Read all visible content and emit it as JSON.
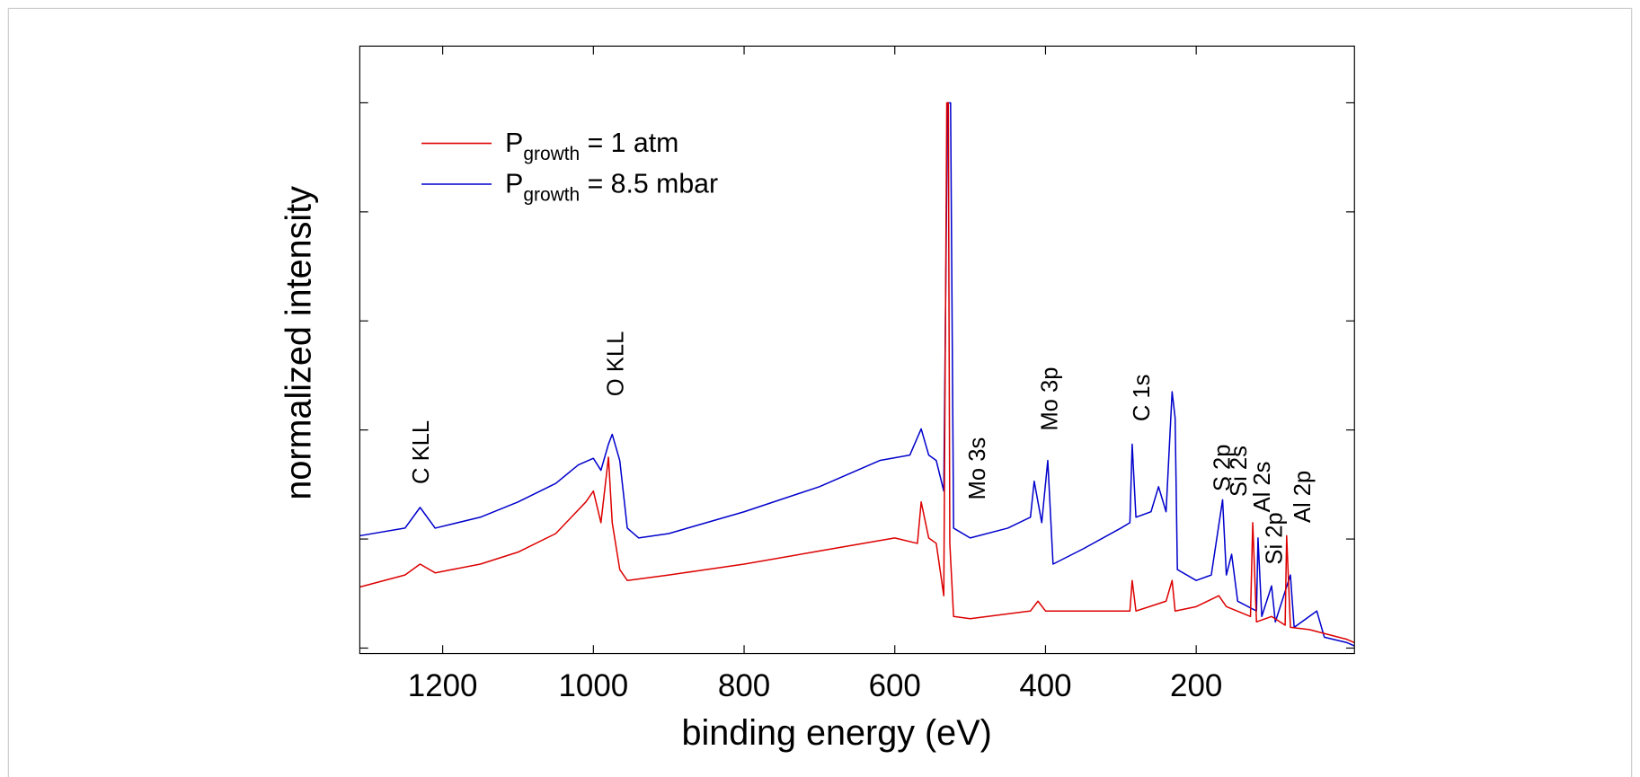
{
  "chart_data": {
    "type": "line",
    "xlabel": "binding energy (eV)",
    "ylabel": "normalized intensity",
    "xlim": [
      1310,
      -10
    ],
    "xticks": [
      1200,
      1000,
      800,
      600,
      400,
      200
    ],
    "ylim": [
      -0.05,
      5.52
    ],
    "yticks": [
      0,
      1,
      2,
      3,
      4,
      5
    ],
    "legend": "upper left",
    "series": [
      {
        "name": [
          "P",
          "growth",
          " = 8.5 mbar"
        ],
        "color": "#0000cc",
        "x": [
          1310,
          1250,
          1230,
          1210,
          1150,
          1100,
          1050,
          1020,
          1000,
          990,
          980,
          975,
          965,
          955,
          940,
          900,
          800,
          700,
          620,
          580,
          565,
          555,
          545,
          535,
          530,
          526,
          522,
          500,
          450,
          420,
          415,
          405,
          397,
          390,
          350,
          300,
          288,
          285,
          280,
          260,
          250,
          240,
          232,
          228,
          225,
          200,
          180,
          165,
          160,
          153,
          145,
          120,
          118,
          113,
          100,
          95,
          75,
          70,
          40,
          30,
          0,
          -10
        ],
        "values": [
          1.03,
          1.1,
          1.29,
          1.1,
          1.2,
          1.34,
          1.51,
          1.68,
          1.74,
          1.63,
          1.87,
          1.96,
          1.72,
          1.1,
          1.01,
          1.05,
          1.25,
          1.48,
          1.72,
          1.77,
          2.01,
          1.77,
          1.72,
          1.44,
          5.0,
          5.0,
          1.1,
          1.01,
          1.1,
          1.2,
          1.53,
          1.15,
          1.72,
          0.77,
          0.91,
          1.1,
          1.15,
          1.87,
          1.2,
          1.25,
          1.48,
          1.25,
          2.35,
          2.11,
          0.72,
          0.62,
          0.67,
          1.36,
          0.67,
          0.86,
          0.43,
          0.34,
          1.01,
          0.29,
          0.57,
          0.24,
          0.67,
          0.19,
          0.34,
          0.1,
          0.05,
          0.02
        ]
      },
      {
        "name": [
          "P",
          "growth",
          " = 1 atm"
        ],
        "color": "#dd0000",
        "x": [
          1310,
          1250,
          1230,
          1210,
          1150,
          1100,
          1050,
          1010,
          1000,
          990,
          980,
          975,
          965,
          955,
          900,
          800,
          700,
          600,
          570,
          565,
          555,
          545,
          535,
          531,
          529,
          527,
          522,
          500,
          420,
          410,
          400,
          300,
          288,
          285,
          280,
          240,
          232,
          228,
          200,
          170,
          160,
          128,
          125,
          120,
          100,
          82,
          80,
          75,
          50,
          0,
          -10
        ],
        "values": [
          0.56,
          0.67,
          0.77,
          0.69,
          0.77,
          0.88,
          1.05,
          1.34,
          1.44,
          1.15,
          1.75,
          1.15,
          0.72,
          0.62,
          0.67,
          0.77,
          0.89,
          1.01,
          0.96,
          1.34,
          1.01,
          0.96,
          0.48,
          5.0,
          5.0,
          0.96,
          0.29,
          0.27,
          0.34,
          0.43,
          0.34,
          0.34,
          0.34,
          0.62,
          0.34,
          0.43,
          0.62,
          0.34,
          0.38,
          0.48,
          0.38,
          0.29,
          1.15,
          0.24,
          0.29,
          0.21,
          1.03,
          0.19,
          0.17,
          0.08,
          0.05
        ]
      }
    ],
    "annotations": [
      "C KLL",
      "O KLL",
      "Mo 3s",
      "Mo 3p",
      "C 1s",
      "S 2p",
      "Si 2s",
      "Al 2s",
      "Si 2p",
      "Al 2p"
    ]
  }
}
